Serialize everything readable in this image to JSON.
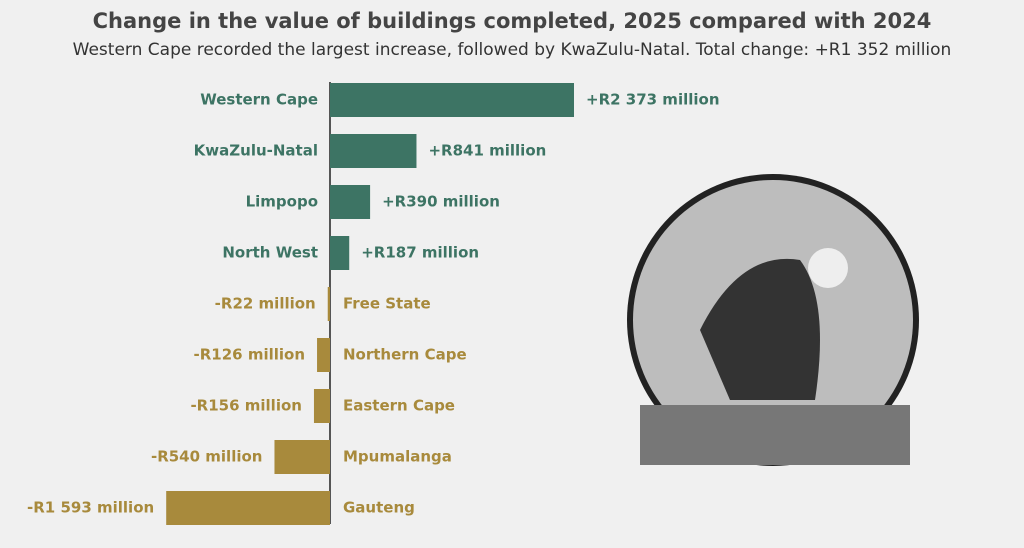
{
  "chart_data": {
    "type": "diverging-bar",
    "title": "Change in the value of buildings completed, 2025 compared with 2024",
    "subtitle": "Western Cape recorded the largest increase, followed by KwaZulu-Natal. Total change: +R1 352 million",
    "categories": [
      "Western Cape",
      "KwaZulu-Natal",
      "Limpopo",
      "North West",
      "Free State",
      "Northern Cape",
      "Eastern Cape",
      "Mpumalanga",
      "Gauteng"
    ],
    "values": [
      2373,
      841,
      390,
      187,
      -22,
      -126,
      -156,
      -540,
      -1593
    ],
    "value_labels": [
      "+R2 373 million",
      "+R841 million",
      "+R390 million",
      "+R187 million",
      "-R22 million",
      "-R126 million",
      "-R156 million",
      "-R540 million",
      "-R1 593 million"
    ],
    "positive_color": "#3d7464",
    "negative_color": "#a88a3c"
  }
}
